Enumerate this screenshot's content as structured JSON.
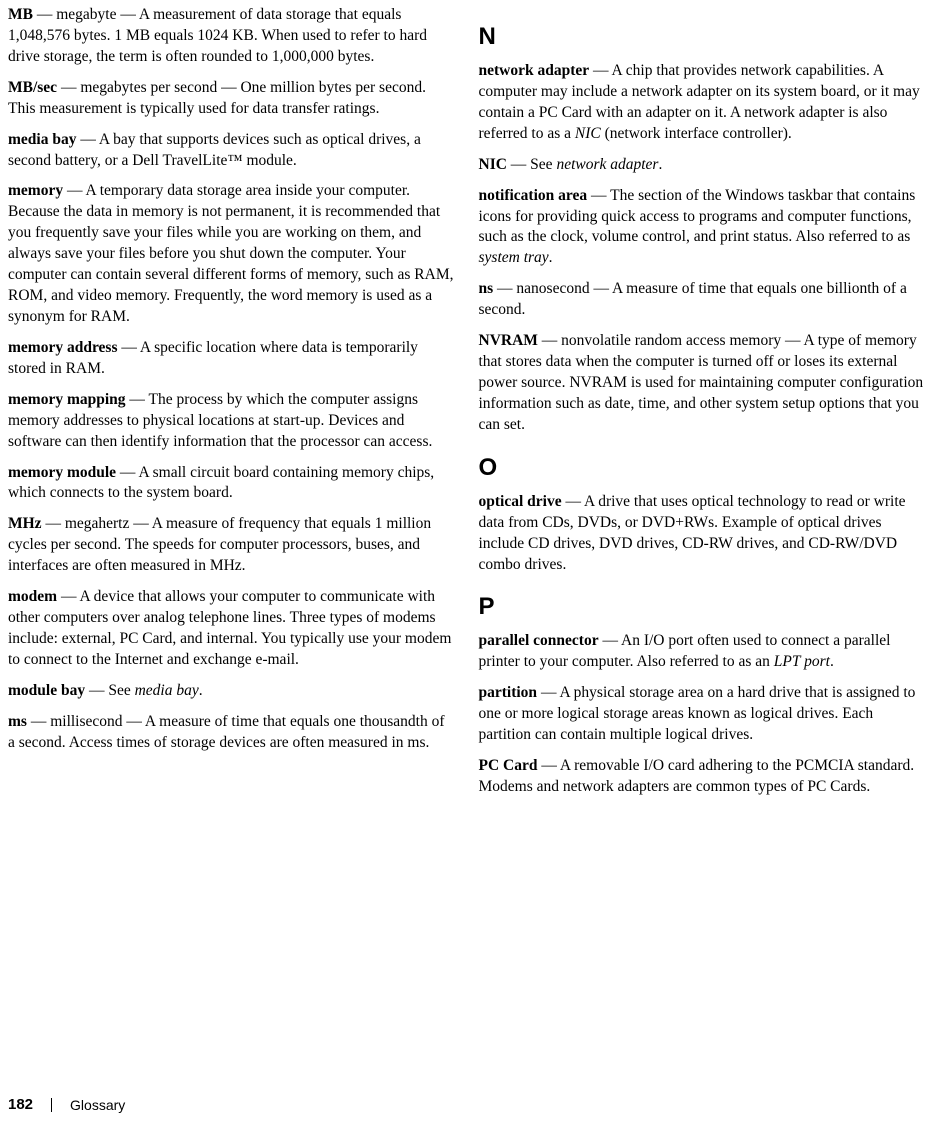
{
  "left": {
    "entries": [
      {
        "term": "MB",
        "body": " — megabyte — A measurement of data storage that equals 1,048,576 bytes. 1 MB equals 1024 KB. When used to refer to hard drive storage, the term is often rounded to 1,000,000 bytes."
      },
      {
        "term": "MB/sec",
        "body": " — megabytes per second — One million bytes per second. This measurement is typically used for data transfer ratings."
      },
      {
        "term": "media bay",
        "body": " — A bay that supports devices such as optical drives, a second battery, or a Dell TravelLite™ module."
      },
      {
        "term": "memory",
        "body": " — A temporary data storage area inside your computer. Because the data in memory is not permanent, it is recommended that you frequently save your files while you are working on them, and always save your files before you shut down the computer. Your computer can contain several different forms of memory, such as RAM, ROM, and video memory. Frequently, the word memory is used as a synonym for RAM."
      },
      {
        "term": "memory address",
        "body": " — A specific location where data is temporarily stored in RAM."
      },
      {
        "term": "memory mapping",
        "body": " — The process by which the computer assigns memory addresses to physical locations at start-up. Devices and software can then identify information that the processor can access."
      },
      {
        "term": "memory module",
        "body": " — A small circuit board containing memory chips, which connects to the system board."
      },
      {
        "term": "MHz",
        "body": " — megahertz — A measure of frequency that equals 1 million cycles per second. The speeds for computer processors, buses, and interfaces are often measured in MHz."
      },
      {
        "term": "modem",
        "body": " — A device that allows your computer to communicate with other computers over analog telephone lines. Three types of modems include: external, PC Card, and internal. You typically use your modem to connect to the Internet and exchange e-mail."
      },
      {
        "term": "module bay",
        "body_pre": " — See ",
        "ital": "media bay",
        "body_post": "."
      },
      {
        "term": "ms",
        "body": " — millisecond — A measure of time that equals one thousandth of a second. Access times of storage devices are often measured in ms."
      }
    ]
  },
  "right": {
    "sections": [
      {
        "letter": "N",
        "entries": [
          {
            "term": "network adapter",
            "body_pre": " — A chip that provides network capabilities. A computer may include a network adapter on its system board, or it may contain a PC Card with an adapter on it. A network adapter is also referred to as a ",
            "ital": "NIC",
            "body_post": " (network interface controller)."
          },
          {
            "term": "NIC",
            "body_pre": " — See ",
            "ital": "network adapter",
            "body_post": "."
          },
          {
            "term": "notification area",
            "body_pre": " — The section of the Windows taskbar that contains icons for providing quick access to programs and computer functions, such as the clock, volume control, and print status. Also referred to as ",
            "ital": "system tray",
            "body_post": "."
          },
          {
            "term": "ns",
            "body": " — nanosecond — A measure of time that equals one billionth of a second."
          },
          {
            "term": "NVRAM",
            "body": " — nonvolatile random access memory — A type of memory that stores data when the computer is turned off or loses its external power source. NVRAM is used for maintaining computer configuration information such as date, time, and other system setup options that you can set."
          }
        ]
      },
      {
        "letter": "O",
        "entries": [
          {
            "term": "optical drive",
            "body": " — A drive that uses optical technology to read or write data from CDs, DVDs, or DVD+RWs. Example of optical drives include CD drives, DVD drives, CD-RW drives, and CD-RW/DVD combo drives."
          }
        ]
      },
      {
        "letter": "P",
        "entries": [
          {
            "term": "parallel connector",
            "body_pre": " — An I/O port often used to connect a parallel printer to your computer. Also referred to as an ",
            "ital": "LPT port",
            "body_post": "."
          },
          {
            "term": "partition",
            "body": " — A physical storage area on a hard drive that is assigned to one or more logical storage areas known as logical drives. Each partition can contain multiple logical drives."
          },
          {
            "term": "PC Card",
            "body": " — A removable I/O card adhering to the PCMCIA standard. Modems and network adapters are common types of PC Cards."
          }
        ]
      }
    ]
  },
  "footer": {
    "page": "182",
    "label": "Glossary"
  }
}
